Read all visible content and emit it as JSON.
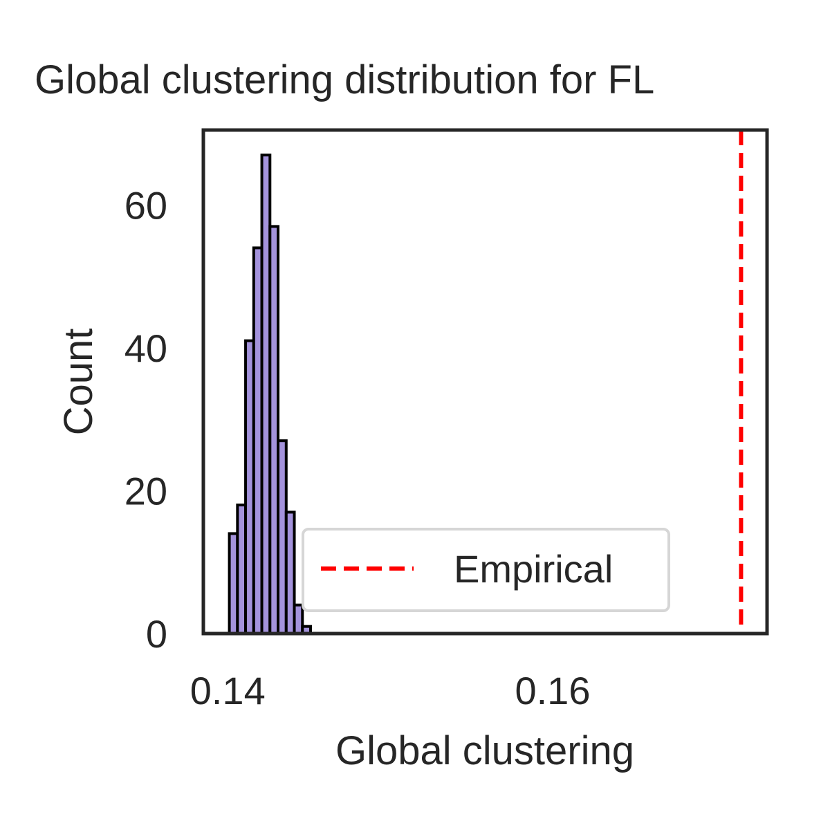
{
  "chart_data": {
    "type": "bar",
    "title": "Global clustering distribution for FL",
    "xlabel": "Global clustering",
    "ylabel": "Count",
    "xlim": [
      0.1385,
      0.1732
    ],
    "ylim": [
      0,
      70.5
    ],
    "xticks": [
      0.14,
      0.16
    ],
    "xtick_labels": [
      "0.14",
      "0.16"
    ],
    "yticks": [
      0,
      20,
      40,
      60
    ],
    "ytick_labels": [
      "0",
      "20",
      "40",
      "60"
    ],
    "bin_width": 0.0005,
    "bins": [
      {
        "x0": 0.1401,
        "count": 14
      },
      {
        "x0": 0.1406,
        "count": 18
      },
      {
        "x0": 0.1411,
        "count": 41
      },
      {
        "x0": 0.1416,
        "count": 54
      },
      {
        "x0": 0.1421,
        "count": 67
      },
      {
        "x0": 0.1426,
        "count": 57
      },
      {
        "x0": 0.1431,
        "count": 27
      },
      {
        "x0": 0.1436,
        "count": 17
      },
      {
        "x0": 0.1441,
        "count": 4
      },
      {
        "x0": 0.1446,
        "count": 1
      }
    ],
    "bar_color": "#a493dc",
    "bar_edge_color": "#000000",
    "reference_line": {
      "x": 0.1716,
      "label": "Empirical",
      "color": "#ff0000",
      "style": "dashed"
    },
    "legend": {
      "entries": [
        "Empirical"
      ],
      "placement": "lower-right"
    },
    "grid": false
  }
}
